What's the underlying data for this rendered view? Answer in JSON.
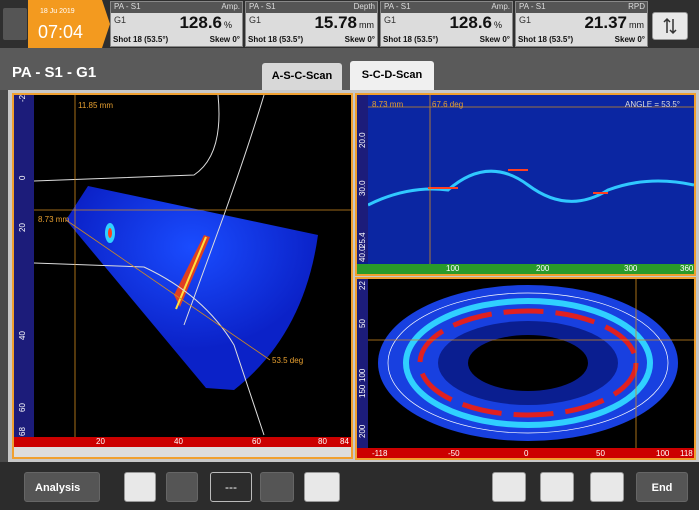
{
  "status": {
    "date": "18 Ju 2019",
    "time": "07:04"
  },
  "readouts": [
    {
      "group": "PA - S1",
      "kind": "Amp.",
      "gate": "G1",
      "value": "128.6",
      "unit": "%",
      "shot": "Shot 18 (53.5°)",
      "skew": "Skew 0°"
    },
    {
      "group": "PA - S1",
      "kind": "Depth",
      "gate": "G1",
      "value": "15.78",
      "unit": "mm",
      "shot": "Shot 18 (53.5°)",
      "skew": "Skew 0°"
    },
    {
      "group": "PA - S1",
      "kind": "Amp.",
      "gate": "G1",
      "value": "128.6",
      "unit": "%",
      "shot": "Shot 18 (53.5°)",
      "skew": "Skew 0°"
    },
    {
      "group": "PA - S1",
      "kind": "RPD",
      "gate": "G1",
      "value": "21.37",
      "unit": "mm",
      "shot": "Shot 18 (53.5°)",
      "skew": "Skew 0°"
    }
  ],
  "header": {
    "title": "PA - S1 - G1",
    "tabs": [
      "A-S-C-Scan",
      "S-C-D-Scan"
    ]
  },
  "sscan": {
    "labels": [
      "11.85 mm",
      "8.73 mm",
      "53.5 deg"
    ],
    "v_ruler": [
      "-2",
      "0",
      "20",
      "40",
      "60",
      "68"
    ],
    "h_ruler": [
      "20",
      "40",
      "60",
      "80",
      "84"
    ]
  },
  "cscan": {
    "labels": [
      "8.73 mm",
      "67.6 deg",
      "ANGLE = 53.5°"
    ],
    "v_ruler": [
      "20.0",
      "30.0",
      "25.4",
      "40.0"
    ],
    "h_ruler": [
      "100",
      "200",
      "300",
      "360"
    ]
  },
  "dscan": {
    "v_ruler": [
      "22",
      "50",
      "100",
      "150",
      "200"
    ],
    "h_ruler": [
      "-118",
      "-50",
      "0",
      "50",
      "100",
      "118"
    ]
  },
  "toolbar": {
    "analysis": "Analysis",
    "mode": "---",
    "end": "End"
  }
}
